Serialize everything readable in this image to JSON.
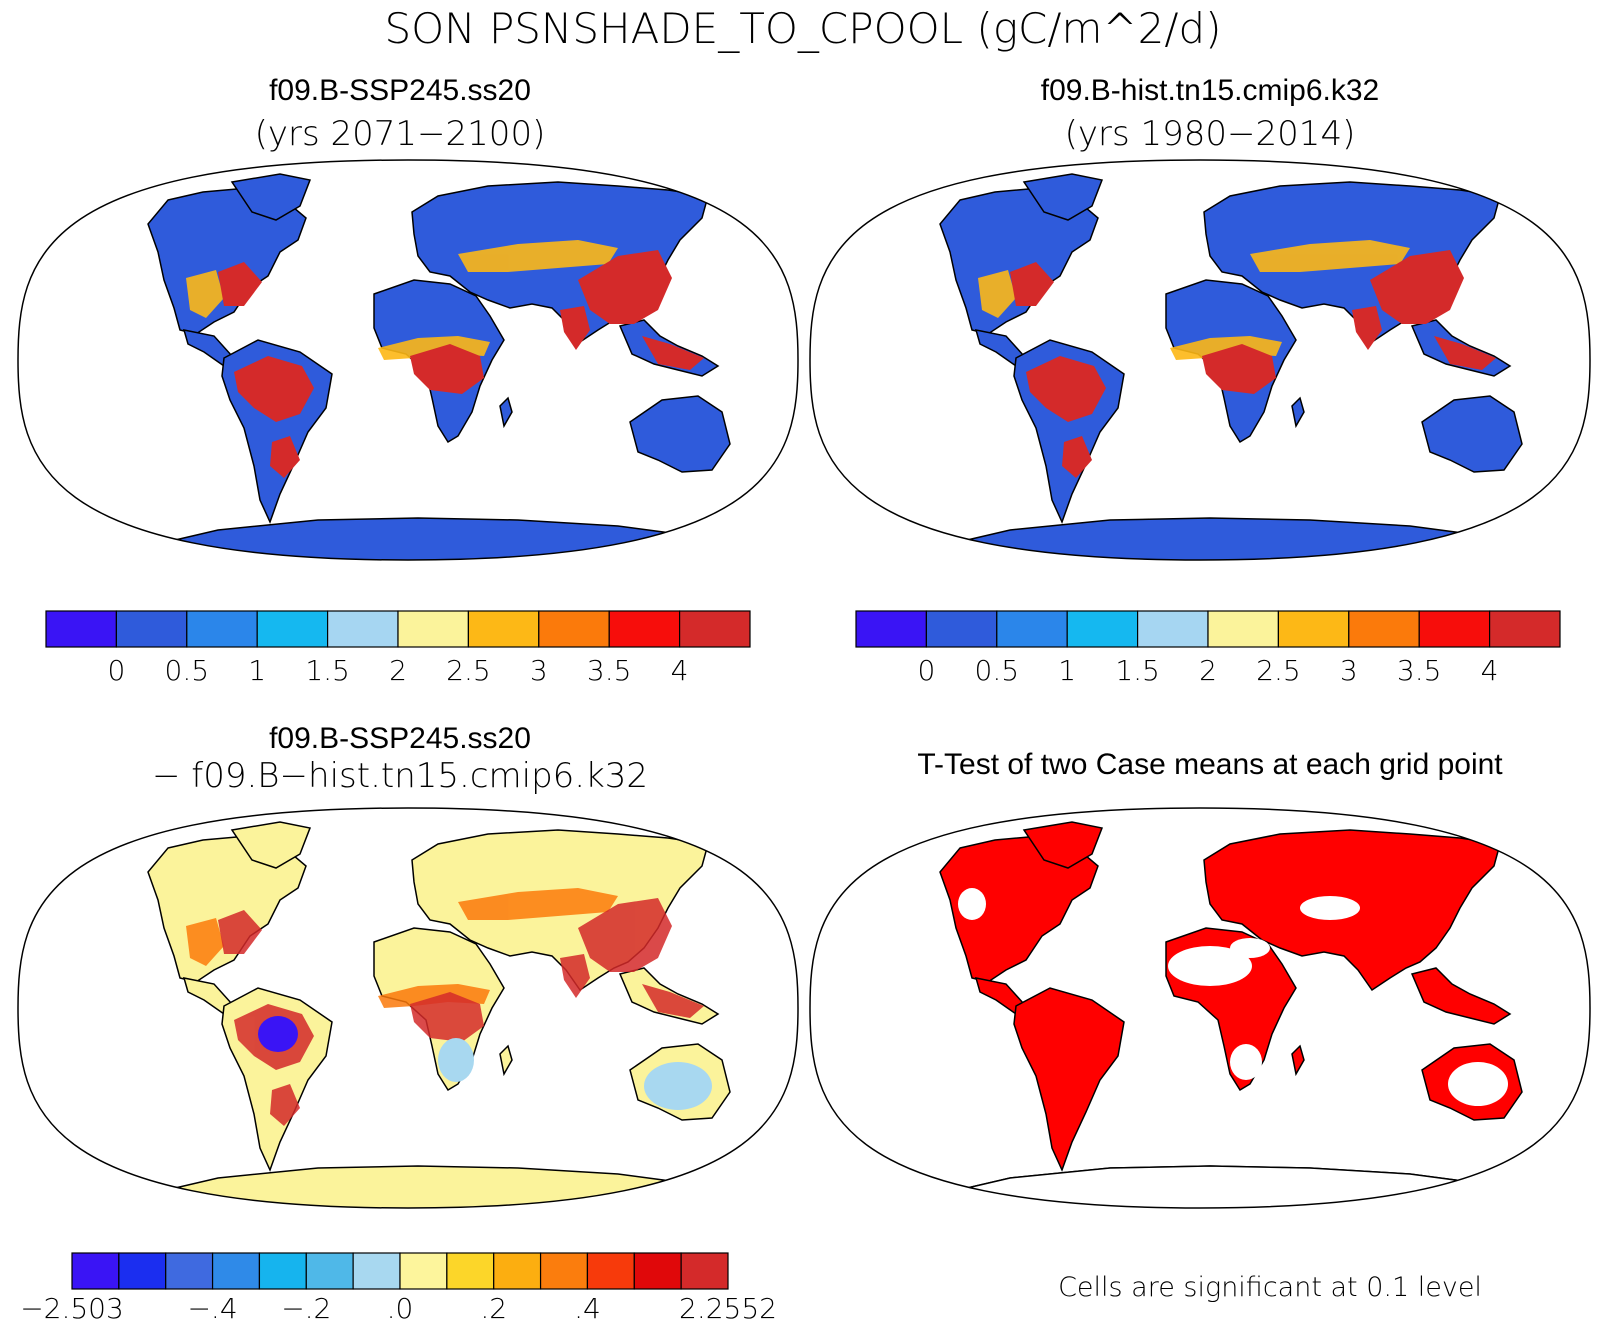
{
  "figure": {
    "title": "SON PSNSHADE_TO_CPOOL (gC/m^2/d)"
  },
  "panels": [
    {
      "id": "future",
      "title": "f09.B-SSP245.ss20",
      "subtitle": "(yrs 2071−2100)"
    },
    {
      "id": "historical",
      "title": "f09.B-hist.tn15.cmip6.k32",
      "subtitle": "(yrs 1980−2014)"
    },
    {
      "id": "difference",
      "title": "f09.B-SSP245.ss20",
      "subtitle": "− f09.B−hist.tn15.cmip6.k32"
    },
    {
      "id": "ttest",
      "title": "T-Test of two Case means at each grid point",
      "footnote": "Cells are significant at 0.1 level"
    }
  ],
  "colorbars": {
    "absolute": {
      "colors": [
        "#3a14f5",
        "#2f5bdb",
        "#2b86ea",
        "#15b8f0",
        "#a6d6f2",
        "#fbf39b",
        "#fdb816",
        "#fb7a0b",
        "#f70d0b",
        "#d42a2a"
      ],
      "labels": [
        "0",
        "0.5",
        "1",
        "1.5",
        "2",
        "2.5",
        "3",
        "3.5",
        "4"
      ]
    },
    "difference": {
      "colors": [
        "#3a14f5",
        "#1b2ef0",
        "#3f6ae0",
        "#2f8ae8",
        "#16b4ee",
        "#4fb8e8",
        "#a8d8f0",
        "#fdf59c",
        "#fcd629",
        "#fcae10",
        "#fb7d0d",
        "#f73a0b",
        "#e0080a",
        "#d42a2a"
      ],
      "labels": [
        "−2.503",
        "−.4",
        "−.2",
        ".0",
        ".2",
        ".4",
        "2.2552"
      ]
    }
  },
  "colors": {
    "land_low": "#2f5bdb",
    "land_high": "#d42a2a",
    "diff_neutral": "#fbf39b",
    "significant": "#ff0000"
  }
}
